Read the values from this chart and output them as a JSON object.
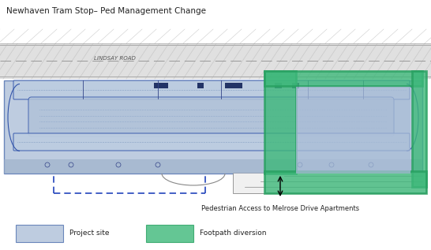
{
  "title": "Newhaven Tram Stop– Ped Management Change",
  "title_fontsize": 7.5,
  "bg_color": "#ffffff",
  "tram_fill_color": "#a8bcd6",
  "tram_border_color": "#4466aa",
  "green_fill_color": "#3db87a",
  "green_border_color": "#27a060",
  "dashed_blue_color": "#2244bb",
  "lindsay_road_label": "LINDSAY ROAD",
  "annotation_text": "Pedestrian Access to Melrose Drive Apartments",
  "legend_blue_label": "Project site",
  "legend_green_label": "Footpath diversion"
}
